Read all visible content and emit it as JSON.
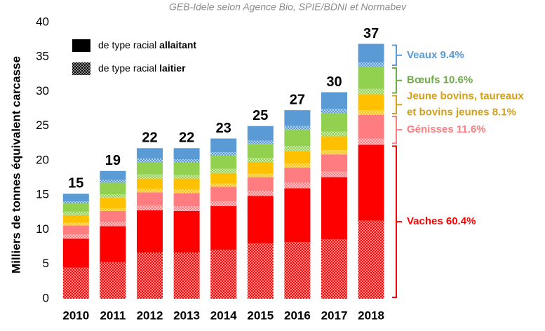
{
  "chart_data": {
    "type": "stacked_bar",
    "subtitle": "GEB-Idele selon Agence Bio, SPIE/BDNI et Normabev",
    "y_label": "Milliers de tonnes équivalent carcasse",
    "categories": [
      "2010",
      "2011",
      "2012",
      "2013",
      "2014",
      "2015",
      "2016",
      "2017",
      "2018"
    ],
    "ylim": [
      0,
      40
    ],
    "yticks": [
      0,
      5,
      10,
      15,
      20,
      25,
      30,
      35,
      40
    ],
    "totals": [
      15,
      19,
      22,
      22,
      23,
      25,
      27,
      30,
      37
    ],
    "legend": [
      {
        "text": "de type racial",
        "bold": "allaitant",
        "pattern": "solid",
        "color": "#000000"
      },
      {
        "text": "de type racial",
        "bold": "laitier",
        "pattern": "dotted",
        "color": "#000000"
      }
    ],
    "series": [
      {
        "color": "#ff0000",
        "pattern": "dotted",
        "values": [
          4.5,
          5.3,
          6.7,
          6.7,
          7.1,
          8.0,
          8.2,
          8.6,
          11.3
        ]
      },
      {
        "color": "#ff0000",
        "pattern": "solid",
        "values": [
          4.2,
          5.2,
          6.1,
          6.0,
          6.3,
          6.9,
          7.8,
          9.0,
          11.0
        ]
      },
      {
        "color": "#ff7c80",
        "pattern": "dotted",
        "values": [
          0.6,
          0.6,
          0.7,
          0.7,
          0.7,
          0.7,
          0.8,
          0.8,
          0.9
        ]
      },
      {
        "color": "#ff7c80",
        "pattern": "solid",
        "values": [
          1.3,
          1.6,
          1.9,
          1.9,
          2.1,
          2.0,
          2.2,
          2.5,
          3.4
        ]
      },
      {
        "color": "#ffc000",
        "pattern": "dotted",
        "values": [
          0.4,
          0.4,
          0.5,
          0.5,
          0.5,
          0.5,
          0.6,
          0.6,
          0.7
        ]
      },
      {
        "color": "#ffc000",
        "pattern": "solid",
        "values": [
          1.1,
          1.5,
          1.5,
          1.6,
          1.5,
          1.7,
          1.8,
          2.0,
          2.3
        ]
      },
      {
        "color": "#92d050",
        "pattern": "dotted",
        "values": [
          0.5,
          0.5,
          0.6,
          0.5,
          0.6,
          0.6,
          0.7,
          0.7,
          0.8
        ]
      },
      {
        "color": "#92d050",
        "pattern": "solid",
        "values": [
          1.2,
          1.7,
          1.8,
          1.8,
          1.9,
          2.0,
          2.4,
          2.7,
          3.2
        ]
      },
      {
        "color": "#5b9bd5",
        "pattern": "dotted",
        "values": [
          0.3,
          0.4,
          0.5,
          0.5,
          0.5,
          0.5,
          0.5,
          0.6,
          0.6
        ]
      },
      {
        "color": "#5b9bd5",
        "pattern": "solid",
        "values": [
          1.1,
          1.3,
          1.5,
          1.6,
          2.0,
          2.1,
          2.3,
          2.4,
          2.7
        ]
      }
    ],
    "annotations": [
      {
        "lines": [
          "Vaches 60.4%"
        ],
        "color": "#ff0000"
      },
      {
        "lines": [
          "Génisses 11.6%"
        ],
        "color": "#ff7c80"
      },
      {
        "lines": [
          "Jeune bovins, taureaux",
          "et bovins jeunes 8.1%"
        ],
        "color": "#d4a017"
      },
      {
        "lines": [
          "Bœufs 10.6%"
        ],
        "color": "#70ad47"
      },
      {
        "lines": [
          "Veaux 9.4%"
        ],
        "color": "#5b9bd5"
      }
    ]
  }
}
